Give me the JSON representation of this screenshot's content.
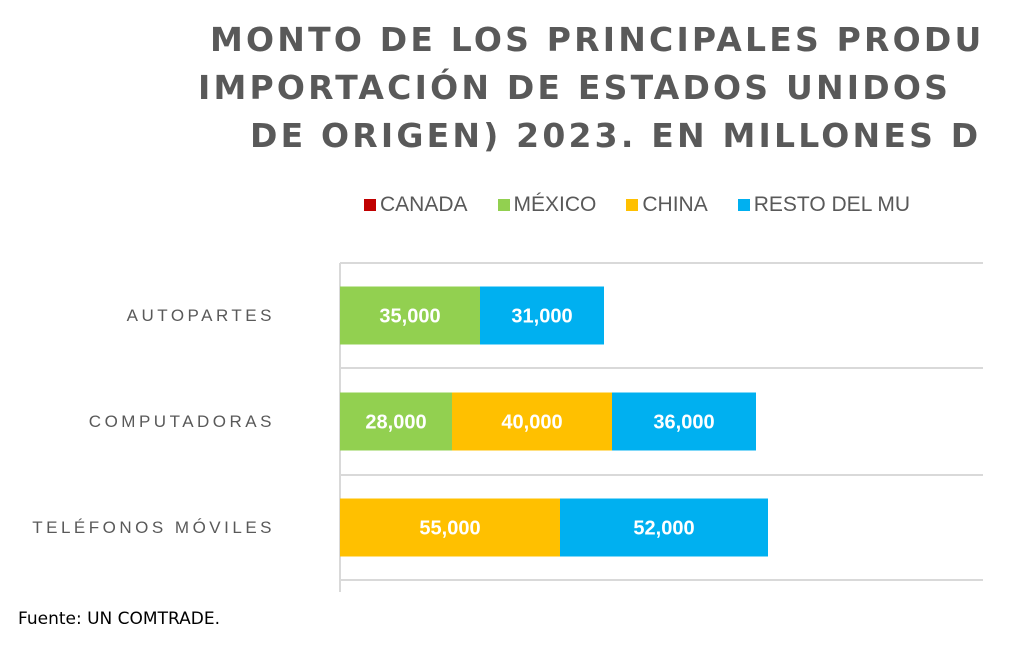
{
  "chart_data": {
    "type": "bar",
    "orientation": "horizontal",
    "stacked": true,
    "title_lines": [
      "MONTO DE LOS PRINCIPALES PRODU",
      "IMPORTACIÓN DE ESTADOS UNIDOS",
      "DE ORIGEN) 2023. EN MILLONES D"
    ],
    "categories": [
      "AUTOPARTES",
      "COMPUTADORAS",
      "TELÉFONOS MÓVILES"
    ],
    "series": [
      {
        "name": "CANADA",
        "color": "#C00000",
        "values": [
          0,
          0,
          0
        ]
      },
      {
        "name": "MÉXICO",
        "color": "#92D050",
        "values": [
          35000,
          28000,
          0
        ]
      },
      {
        "name": "CHINA",
        "color": "#FFC000",
        "values": [
          0,
          40000,
          55000
        ]
      },
      {
        "name": "RESTO DEL MU",
        "color": "#00B0F0",
        "values": [
          31000,
          36000,
          52000
        ]
      }
    ],
    "data_labels": [
      [
        "",
        "35,000",
        "",
        "31,000"
      ],
      [
        "",
        "28,000",
        "40,000",
        "36,000"
      ],
      [
        "",
        "",
        "55,000",
        "52,000"
      ]
    ],
    "legend_position": "top",
    "grid": true,
    "xlim": [
      0,
      160000
    ]
  },
  "source": "Fuente: UN COMTRADE."
}
